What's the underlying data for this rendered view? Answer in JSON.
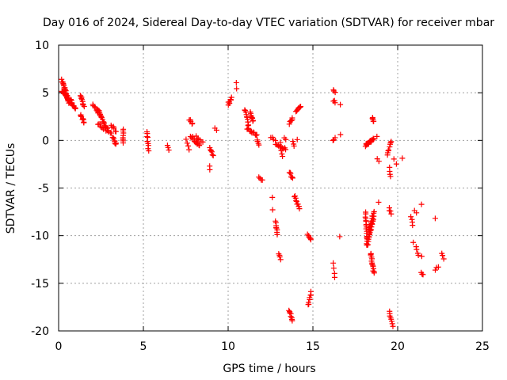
{
  "chart_data": {
    "type": "scatter",
    "title": "Day 016 of 2024, Sidereal Day-to-day VTEC variation (SDTVAR) for receiver mbar",
    "xlabel": "GPS time / hours",
    "ylabel": "SDTVAR / TECUs",
    "xlim": [
      0,
      25
    ],
    "ylim": [
      -20,
      10
    ],
    "xticks": [
      0,
      5,
      10,
      15,
      20,
      25
    ],
    "yticks": [
      -20,
      -15,
      -10,
      -5,
      0,
      5,
      10
    ],
    "xtick_labels": [
      "0",
      "5",
      "10",
      "15",
      "20",
      "25"
    ],
    "ytick_labels": [
      "-20",
      "-15",
      "-10",
      "-5",
      "0",
      "5",
      "10"
    ],
    "grid": true,
    "marker": "plus",
    "series_color": "#ff0000",
    "tracks": [
      {
        "x0": 0.2,
        "y0": 6.3,
        "x1": 0.6,
        "y1": 4.0,
        "n": 28
      },
      {
        "x0": 0.2,
        "y0": 5.2,
        "x1": 0.8,
        "y1": 3.8,
        "n": 20
      },
      {
        "x0": 0.7,
        "y0": 4.2,
        "x1": 1.0,
        "y1": 3.3,
        "n": 10
      },
      {
        "x0": 1.3,
        "y0": 4.7,
        "x1": 1.5,
        "y1": 3.5,
        "n": 10
      },
      {
        "x0": 1.3,
        "y0": 2.7,
        "x1": 1.5,
        "y1": 1.8,
        "n": 8
      },
      {
        "x0": 2.0,
        "y0": 3.8,
        "x1": 2.5,
        "y1": 2.5,
        "n": 10
      },
      {
        "x0": 2.3,
        "y0": 3.3,
        "x1": 2.9,
        "y1": 1.0,
        "n": 16
      },
      {
        "x0": 2.3,
        "y0": 1.8,
        "x1": 3.1,
        "y1": 0.7,
        "n": 12
      },
      {
        "x0": 3.1,
        "y0": 1.6,
        "x1": 3.4,
        "y1": 0.9,
        "n": 6
      },
      {
        "x0": 3.2,
        "y0": 0.4,
        "x1": 3.4,
        "y1": -0.4,
        "n": 8
      },
      {
        "x0": 3.8,
        "y0": 1.1,
        "x1": 3.8,
        "y1": -0.3,
        "n": 8
      },
      {
        "x0": 5.2,
        "y0": 0.8,
        "x1": 5.3,
        "y1": -1.0,
        "n": 10
      },
      {
        "x0": 6.4,
        "y0": -0.6,
        "x1": 6.5,
        "y1": -1.0,
        "n": 3
      },
      {
        "x0": 7.5,
        "y0": 0.1,
        "x1": 7.7,
        "y1": -0.9,
        "n": 4
      },
      {
        "x0": 7.7,
        "y0": 2.2,
        "x1": 7.9,
        "y1": 1.7,
        "n": 5
      },
      {
        "x0": 7.8,
        "y0": 0.5,
        "x1": 8.3,
        "y1": -0.6,
        "n": 12
      },
      {
        "x0": 8.1,
        "y0": 0.4,
        "x1": 8.5,
        "y1": -0.2,
        "n": 6
      },
      {
        "x0": 8.9,
        "y0": -0.7,
        "x1": 9.1,
        "y1": -1.6,
        "n": 6
      },
      {
        "x0": 9.2,
        "y0": 1.3,
        "x1": 9.3,
        "y1": 1.0,
        "n": 2
      },
      {
        "x0": 8.9,
        "y0": -2.8,
        "x1": 8.9,
        "y1": -3.0,
        "n": 2
      },
      {
        "x0": 10.0,
        "y0": 3.8,
        "x1": 10.2,
        "y1": 4.5,
        "n": 8
      },
      {
        "x0": 10.5,
        "y0": 6.1,
        "x1": 10.5,
        "y1": 5.5,
        "n": 2
      },
      {
        "x0": 11.0,
        "y0": 3.3,
        "x1": 11.2,
        "y1": 1.5,
        "n": 10
      },
      {
        "x0": 11.3,
        "y0": 3.0,
        "x1": 11.5,
        "y1": 2.0,
        "n": 8
      },
      {
        "x0": 11.1,
        "y0": 1.3,
        "x1": 11.7,
        "y1": 0.5,
        "n": 12
      },
      {
        "x0": 11.7,
        "y0": 0.0,
        "x1": 11.8,
        "y1": -0.6,
        "n": 4
      },
      {
        "x0": 11.8,
        "y0": -3.8,
        "x1": 12.0,
        "y1": -4.2,
        "n": 4
      },
      {
        "x0": 12.5,
        "y0": 0.3,
        "x1": 12.8,
        "y1": 0.1,
        "n": 4
      },
      {
        "x0": 12.8,
        "y0": -0.5,
        "x1": 13.4,
        "y1": -0.9,
        "n": 10
      },
      {
        "x0": 12.6,
        "y0": -6.0,
        "x1": 12.6,
        "y1": -7.3,
        "n": 2
      },
      {
        "x0": 12.8,
        "y0": -8.5,
        "x1": 12.9,
        "y1": -9.8,
        "n": 8
      },
      {
        "x0": 13.0,
        "y0": -11.8,
        "x1": 13.1,
        "y1": -12.5,
        "n": 4
      },
      {
        "x0": 13.1,
        "y0": -0.3,
        "x1": 13.2,
        "y1": -1.7,
        "n": 5
      },
      {
        "x0": 13.3,
        "y0": 0.2,
        "x1": 13.4,
        "y1": 0.0,
        "n": 2
      },
      {
        "x0": 13.6,
        "y0": 1.8,
        "x1": 13.8,
        "y1": 2.4,
        "n": 6
      },
      {
        "x0": 13.8,
        "y0": -0.2,
        "x1": 13.9,
        "y1": -0.6,
        "n": 3
      },
      {
        "x0": 13.6,
        "y0": -3.3,
        "x1": 13.8,
        "y1": -4.0,
        "n": 6
      },
      {
        "x0": 13.9,
        "y0": -5.8,
        "x1": 14.2,
        "y1": -7.2,
        "n": 10
      },
      {
        "x0": 13.6,
        "y0": -17.8,
        "x1": 13.8,
        "y1": -18.9,
        "n": 8
      },
      {
        "x0": 14.0,
        "y0": 3.0,
        "x1": 14.3,
        "y1": 3.6,
        "n": 8
      },
      {
        "x0": 14.1,
        "y0": 0.0,
        "x1": 14.1,
        "y1": 0.0,
        "n": 1
      },
      {
        "x0": 14.7,
        "y0": -9.8,
        "x1": 14.9,
        "y1": -10.5,
        "n": 6
      },
      {
        "x0": 14.7,
        "y0": -17.3,
        "x1": 14.9,
        "y1": -15.9,
        "n": 8
      },
      {
        "x0": 16.2,
        "y0": 5.4,
        "x1": 16.3,
        "y1": 5.0,
        "n": 3
      },
      {
        "x0": 16.2,
        "y0": 4.2,
        "x1": 16.3,
        "y1": 3.9,
        "n": 3
      },
      {
        "x0": 16.2,
        "y0": -0.1,
        "x1": 16.3,
        "y1": 0.3,
        "n": 3
      },
      {
        "x0": 16.2,
        "y0": -13.0,
        "x1": 16.3,
        "y1": -14.3,
        "n": 4
      },
      {
        "x0": 16.6,
        "y0": 3.8,
        "x1": 16.7,
        "y1": 3.8,
        "n": 1
      },
      {
        "x0": 16.6,
        "y0": 0.6,
        "x1": 16.6,
        "y1": 0.6,
        "n": 1
      },
      {
        "x0": 16.6,
        "y0": -10.1,
        "x1": 16.6,
        "y1": -10.1,
        "n": 1
      },
      {
        "x0": 18.1,
        "y0": -0.5,
        "x1": 18.6,
        "y1": 0.2,
        "n": 16
      },
      {
        "x0": 18.1,
        "y0": -7.6,
        "x1": 18.2,
        "y1": -11.0,
        "n": 18
      },
      {
        "x0": 18.2,
        "y0": -11.0,
        "x1": 18.6,
        "y1": -8.0,
        "n": 18
      },
      {
        "x0": 18.3,
        "y0": -9.5,
        "x1": 18.6,
        "y1": -7.5,
        "n": 12
      },
      {
        "x0": 18.5,
        "y0": 2.5,
        "x1": 18.6,
        "y1": 2.0,
        "n": 5
      },
      {
        "x0": 18.4,
        "y0": -11.8,
        "x1": 18.6,
        "y1": -14.0,
        "n": 14
      },
      {
        "x0": 18.8,
        "y0": -2.0,
        "x1": 18.9,
        "y1": -2.2,
        "n": 2
      },
      {
        "x0": 18.8,
        "y0": 0.4,
        "x1": 18.8,
        "y1": 0.4,
        "n": 1
      },
      {
        "x0": 18.9,
        "y0": -6.5,
        "x1": 18.9,
        "y1": -6.5,
        "n": 1
      },
      {
        "x0": 19.4,
        "y0": -1.5,
        "x1": 19.6,
        "y1": -0.1,
        "n": 8
      },
      {
        "x0": 19.5,
        "y0": -2.8,
        "x1": 19.6,
        "y1": -3.8,
        "n": 4
      },
      {
        "x0": 19.5,
        "y0": -7.0,
        "x1": 19.6,
        "y1": -7.8,
        "n": 4
      },
      {
        "x0": 19.5,
        "y0": -18.0,
        "x1": 19.7,
        "y1": -19.4,
        "n": 8
      },
      {
        "x0": 19.8,
        "y0": -2.0,
        "x1": 19.9,
        "y1": -2.4,
        "n": 2
      },
      {
        "x0": 20.3,
        "y0": -1.8,
        "x1": 20.3,
        "y1": -1.8,
        "n": 1
      },
      {
        "x0": 20.8,
        "y0": -8.0,
        "x1": 20.9,
        "y1": -9.0,
        "n": 4
      },
      {
        "x0": 20.9,
        "y0": -10.7,
        "x1": 20.9,
        "y1": -10.7,
        "n": 1
      },
      {
        "x0": 21.0,
        "y0": -7.3,
        "x1": 21.1,
        "y1": -7.5,
        "n": 2
      },
      {
        "x0": 21.1,
        "y0": -11.2,
        "x1": 21.2,
        "y1": -12.0,
        "n": 4
      },
      {
        "x0": 21.4,
        "y0": -6.6,
        "x1": 21.4,
        "y1": -6.6,
        "n": 1
      },
      {
        "x0": 21.4,
        "y0": -12.2,
        "x1": 21.4,
        "y1": -12.2,
        "n": 1
      },
      {
        "x0": 21.4,
        "y0": -13.9,
        "x1": 21.5,
        "y1": -14.2,
        "n": 3
      },
      {
        "x0": 22.2,
        "y0": -8.3,
        "x1": 22.2,
        "y1": -8.3,
        "n": 1
      },
      {
        "x0": 22.2,
        "y0": -13.5,
        "x1": 22.4,
        "y1": -13.2,
        "n": 3
      },
      {
        "x0": 22.6,
        "y0": -11.8,
        "x1": 22.7,
        "y1": -12.4,
        "n": 3
      }
    ]
  }
}
